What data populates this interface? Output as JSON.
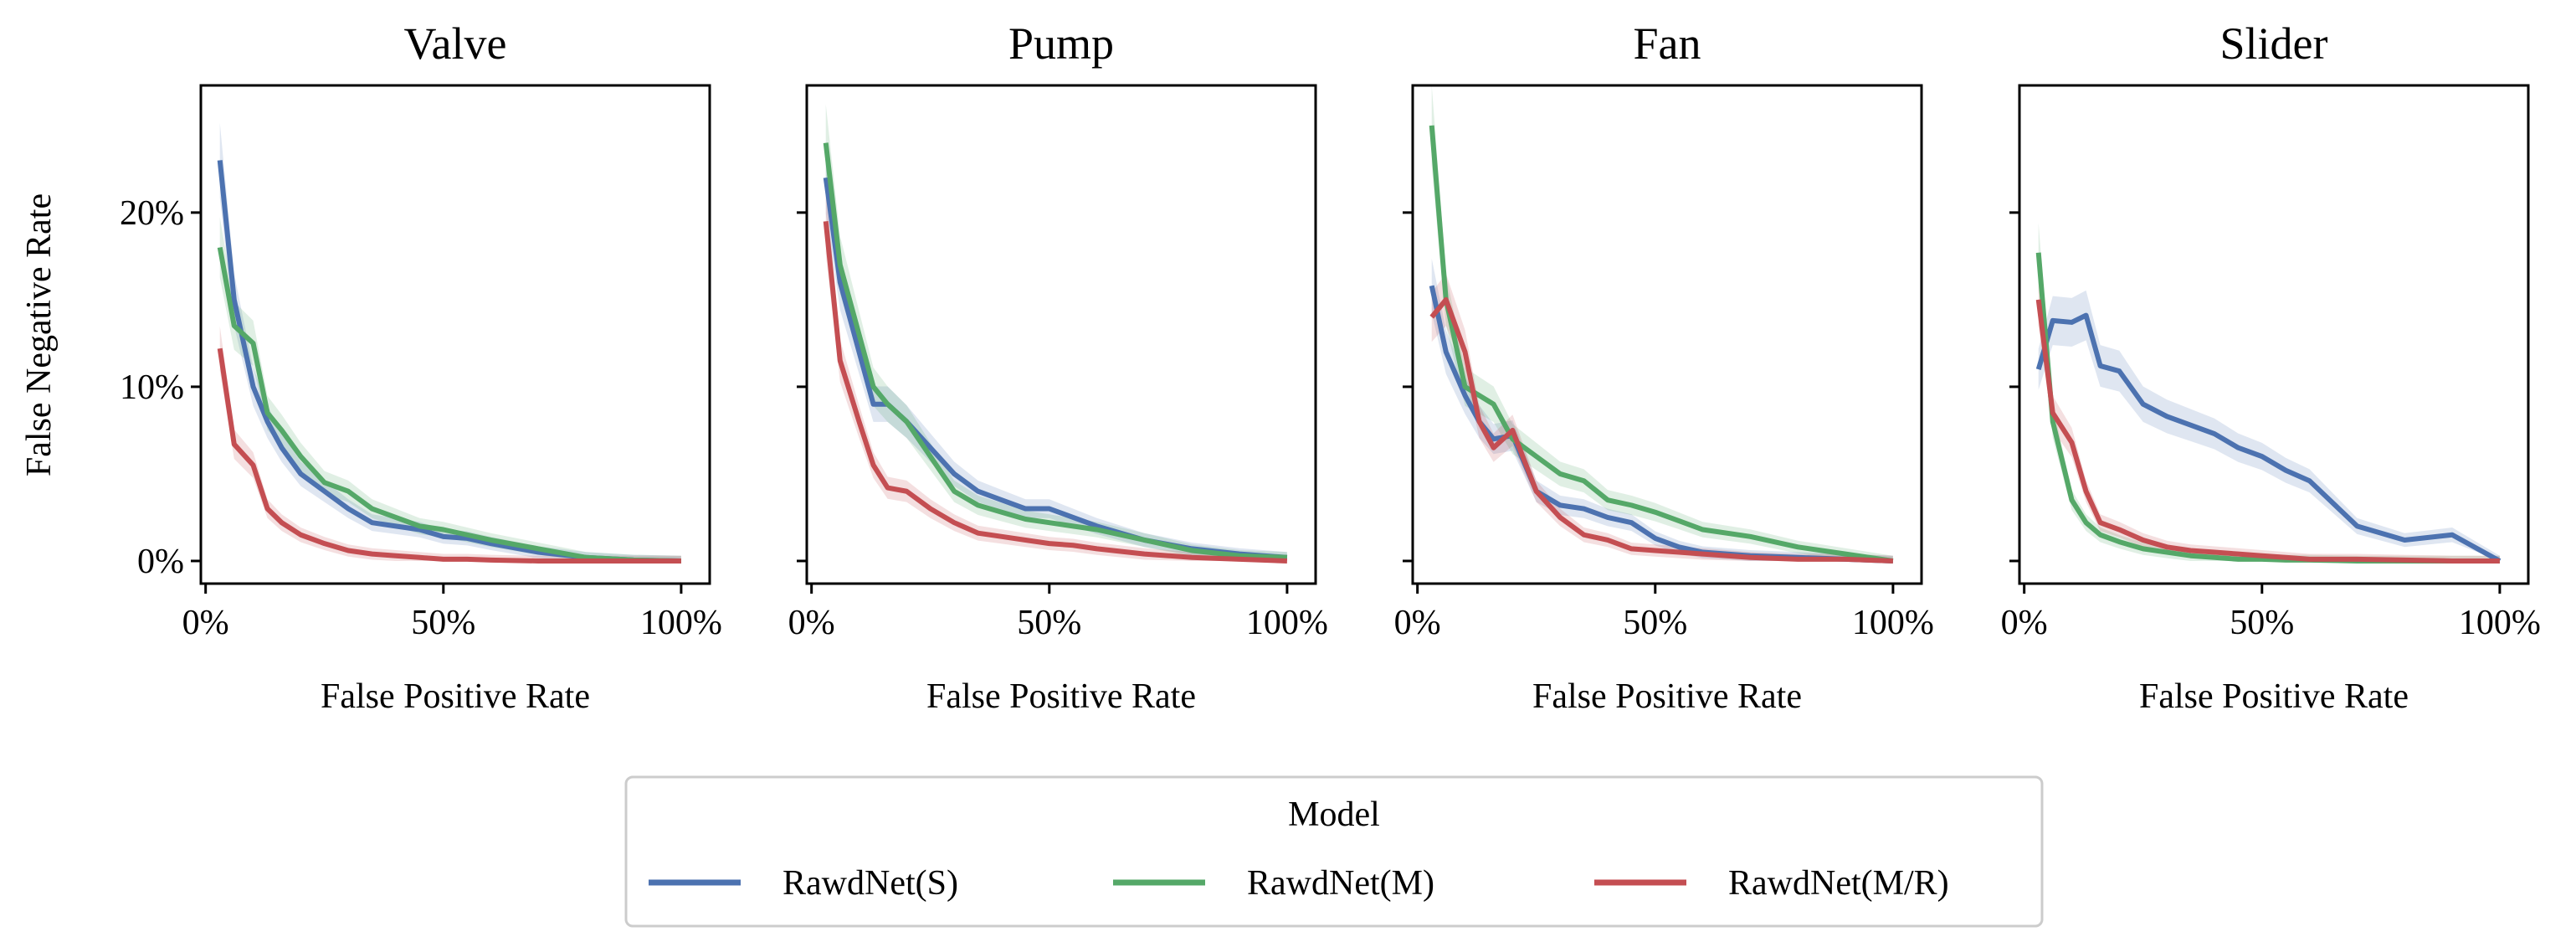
{
  "chart_data": {
    "type": "line",
    "ylabel": "False Negative Rate",
    "xlabel": "False Positive Rate",
    "xlim": [
      -1,
      106
    ],
    "ylim": [
      -1.3,
      27.3
    ],
    "xticks": [
      0,
      50,
      100
    ],
    "xtick_labels": [
      "0%",
      "50%",
      "100%"
    ],
    "yticks": [
      0,
      10,
      20
    ],
    "ytick_labels": [
      "0%",
      "10%",
      "20%"
    ],
    "grid": false,
    "x": [
      3,
      6,
      10,
      13,
      16,
      20,
      25,
      30,
      35,
      40,
      45,
      50,
      55,
      60,
      70,
      80,
      90,
      100
    ],
    "legend": {
      "title": "Model",
      "placement": "bottom-center",
      "entries": [
        "RawdNet(S)",
        "RawdNet(M)",
        "RawdNet(M/R)"
      ]
    },
    "colors": [
      "#4c72b0",
      "#55a868",
      "#c44e52"
    ],
    "panels": [
      {
        "title": "Valve",
        "series": [
          {
            "name": "RawdNet(S)",
            "values": [
              23,
              15,
              10,
              8,
              6.5,
              5,
              4,
              3,
              2.2,
              2,
              1.8,
              1.4,
              1.3,
              1.0,
              0.5,
              0.2,
              0.05,
              0
            ]
          },
          {
            "name": "RawdNet(M)",
            "values": [
              18,
              13.5,
              12.5,
              8.5,
              7.5,
              6,
              4.5,
              4,
              3,
              2.5,
              2,
              1.8,
              1.5,
              1.2,
              0.7,
              0.2,
              0.05,
              0
            ]
          },
          {
            "name": "RawdNet(M/R)",
            "values": [
              12.2,
              6.7,
              5.5,
              3,
              2.2,
              1.5,
              1,
              0.6,
              0.4,
              0.3,
              0.2,
              0.1,
              0.1,
              0.05,
              0,
              0,
              0,
              0
            ]
          }
        ]
      },
      {
        "title": "Pump",
        "series": [
          {
            "name": "RawdNet(S)",
            "values": [
              22,
              16,
              12,
              9,
              9,
              8,
              6.5,
              5,
              4,
              3.5,
              3,
              3,
              2.5,
              2,
              1.2,
              0.7,
              0.4,
              0.2
            ]
          },
          {
            "name": "RawdNet(M)",
            "values": [
              24,
              17,
              13,
              10,
              9,
              8,
              6,
              4,
              3.2,
              2.8,
              2.4,
              2.2,
              2,
              1.8,
              1.2,
              0.6,
              0.3,
              0.2
            ]
          },
          {
            "name": "RawdNet(M/R)",
            "values": [
              19.5,
              11.5,
              8,
              5.5,
              4.2,
              4,
              3,
              2.2,
              1.6,
              1.4,
              1.2,
              1,
              0.9,
              0.7,
              0.4,
              0.2,
              0.1,
              0
            ]
          }
        ]
      },
      {
        "title": "Fan",
        "series": [
          {
            "name": "RawdNet(S)",
            "values": [
              15.8,
              12,
              9.5,
              8,
              7,
              7.2,
              4,
              3.2,
              3,
              2.5,
              2.2,
              1.3,
              0.8,
              0.5,
              0.3,
              0.2,
              0.1,
              0
            ]
          },
          {
            "name": "RawdNet(M)",
            "values": [
              25,
              15,
              10,
              9.5,
              9,
              7,
              6,
              5,
              4.6,
              3.5,
              3.2,
              2.8,
              2.3,
              1.8,
              1.4,
              0.8,
              0.4,
              0
            ]
          },
          {
            "name": "RawdNet(M/R)",
            "values": [
              14,
              15,
              12,
              8,
              6.5,
              7.5,
              4,
              2.5,
              1.5,
              1.2,
              0.7,
              0.6,
              0.5,
              0.4,
              0.2,
              0.1,
              0.1,
              0
            ]
          }
        ]
      },
      {
        "title": "Slider",
        "series": [
          {
            "name": "RawdNet(S)",
            "values": [
              11,
              13.8,
              13.7,
              14.1,
              11.2,
              10.9,
              9,
              8.3,
              7.8,
              7.3,
              6.5,
              6,
              5.2,
              4.6,
              2.0,
              1.2,
              1.5,
              0
            ]
          },
          {
            "name": "RawdNet(M)",
            "values": [
              17.7,
              8,
              3.5,
              2.2,
              1.5,
              1.1,
              0.7,
              0.5,
              0.3,
              0.2,
              0.1,
              0.1,
              0.05,
              0.05,
              0,
              0,
              0,
              0
            ]
          },
          {
            "name": "RawdNet(M/R)",
            "values": [
              15,
              8.5,
              6.8,
              4,
              2.2,
              1.8,
              1.2,
              0.8,
              0.6,
              0.5,
              0.4,
              0.3,
              0.2,
              0.1,
              0.1,
              0.05,
              0,
              0
            ]
          }
        ]
      }
    ]
  }
}
